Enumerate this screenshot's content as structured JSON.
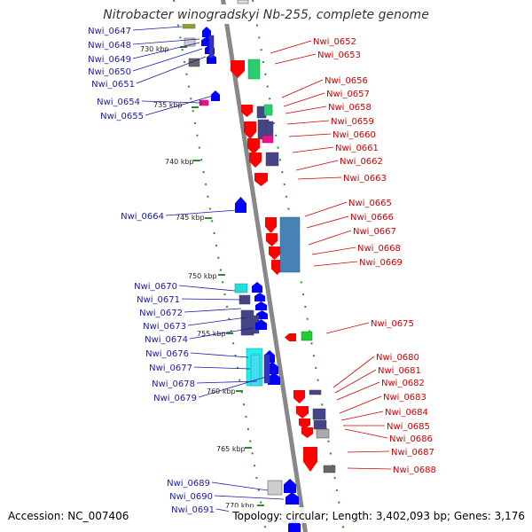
{
  "title": "Nitrobacter winogradskyi Nb-255, complete genome",
  "accession": "Accession: NC_007406",
  "topology": "Topology: circular; Length: 3,402,093 bp; Genes: 3,176",
  "colors": {
    "backbone": "#888888",
    "dots": "#2e8b2e",
    "left_label": "#1a1aa8",
    "right_label": "#cc0000",
    "fwd_gene": "#0000ff",
    "rev_gene": "#ff0000"
  },
  "kbp_ticks": [
    "730 kbp",
    "735 kbp",
    "740 kbp",
    "745 kbp",
    "750 kbp",
    "755 kbp",
    "760 kbp",
    "765 kbp",
    "770 kbp"
  ],
  "left_labels": [
    "Nwi_0647",
    "Nwi_0648",
    "Nwi_0649",
    "Nwi_0650",
    "Nwi_0651",
    "Nwi_0654",
    "Nwi_0655",
    "Nwi_0664",
    "Nwi_0670",
    "Nwi_0671",
    "Nwi_0672",
    "Nwi_0673",
    "Nwi_0674",
    "Nwi_0676",
    "Nwi_0677",
    "Nwi_0678",
    "Nwi_0679",
    "Nwi_0689",
    "Nwi_0690",
    "Nwi_0691"
  ],
  "right_labels": [
    "Nwi_0652",
    "Nwi_0653",
    "Nwi_0656",
    "Nwi_0657",
    "Nwi_0658",
    "Nwi_0659",
    "Nwi_0660",
    "Nwi_0661",
    "Nwi_0662",
    "Nwi_0663",
    "Nwi_0665",
    "Nwi_0666",
    "Nwi_0667",
    "Nwi_0668",
    "Nwi_0669",
    "Nwi_0675",
    "Nwi_0680",
    "Nwi_0681",
    "Nwi_0682",
    "Nwi_0683",
    "Nwi_0684",
    "Nwi_0685",
    "Nwi_0686",
    "Nwi_0687",
    "Nwi_0688"
  ]
}
